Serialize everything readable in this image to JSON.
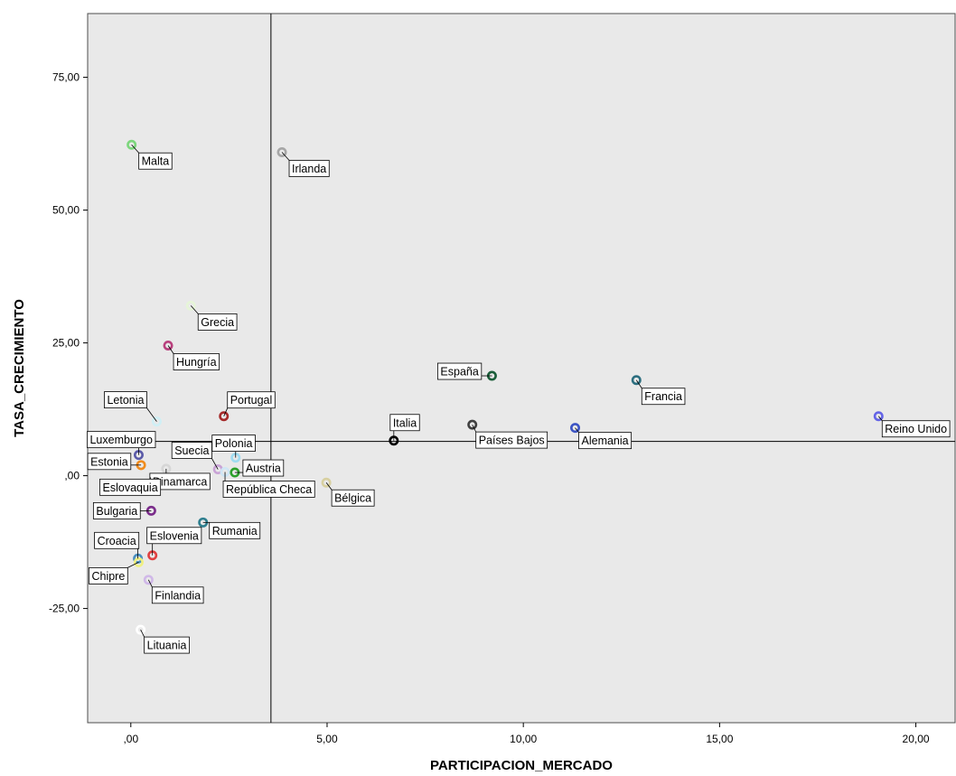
{
  "chart_data": {
    "type": "scatter",
    "title": "",
    "xlabel": "PARTICIPACION_MERCADO",
    "ylabel": "TASA_CRECIMIENTO",
    "xlim": [
      -1.1,
      21.0
    ],
    "ylim": [
      -46.5,
      87.0
    ],
    "x_ticks": [
      0,
      5,
      10,
      15,
      20
    ],
    "x_tick_labels": [
      ",00",
      "5,00",
      "10,00",
      "15,00",
      "20,00"
    ],
    "y_ticks": [
      -25,
      0,
      25,
      50,
      75
    ],
    "y_tick_labels": [
      "-25,00",
      ",00",
      "25,00",
      "50,00",
      "75,00"
    ],
    "reference_lines": {
      "x": 3.57,
      "y": 6.45
    },
    "grid": false,
    "legend": "none",
    "points": [
      {
        "label": "Malta",
        "x": 0.02,
        "y": 62.3,
        "color": "#7cd67c"
      },
      {
        "label": "Irlanda",
        "x": 3.85,
        "y": 60.9,
        "color": "#a6a6a6"
      },
      {
        "label": "Grecia",
        "x": 1.53,
        "y": 32.0,
        "color": "#e6f5d8"
      },
      {
        "label": "Hungría",
        "x": 0.95,
        "y": 24.5,
        "color": "#b8407d"
      },
      {
        "label": "España",
        "x": 9.2,
        "y": 18.8,
        "color": "#1b5e3a"
      },
      {
        "label": "Francia",
        "x": 12.88,
        "y": 18.0,
        "color": "#2c6e7f"
      },
      {
        "label": "Reino Unido",
        "x": 19.05,
        "y": 11.2,
        "color": "#6464e6"
      },
      {
        "label": "Portugal",
        "x": 2.37,
        "y": 11.2,
        "color": "#a52a2a"
      },
      {
        "label": "Letonia",
        "x": 0.66,
        "y": 10.2,
        "color": "#cfeff5"
      },
      {
        "label": "Países Bajos",
        "x": 8.7,
        "y": 9.6,
        "color": "#404040"
      },
      {
        "label": "Alemania",
        "x": 11.32,
        "y": 9.0,
        "color": "#3c54c4"
      },
      {
        "label": "Italia",
        "x": 6.7,
        "y": 6.6,
        "color": "#000000"
      },
      {
        "label": "Luxemburgo",
        "x": 0.2,
        "y": 3.9,
        "color": "#5a5aa8"
      },
      {
        "label": "Polonia",
        "x": 2.67,
        "y": 3.4,
        "color": "#9fdcf0"
      },
      {
        "label": "Estonia",
        "x": 0.26,
        "y": 2.0,
        "color": "#f08c1e"
      },
      {
        "label": "Suecia",
        "x": 2.22,
        "y": 1.2,
        "color": "#c9a3d6"
      },
      {
        "label": "Dinamarca",
        "x": 0.9,
        "y": 1.3,
        "color": "#d6d6d6"
      },
      {
        "label": "República Checa",
        "x": 2.4,
        "y": 0.7,
        "color": "#cfe6f5"
      },
      {
        "label": "Austria",
        "x": 2.65,
        "y": 0.6,
        "color": "#2ca02c"
      },
      {
        "label": "Eslovaquia",
        "x": 0.5,
        "y": -0.3,
        "color": "#e6e6e6"
      },
      {
        "label": "Bélgica",
        "x": 4.98,
        "y": -1.3,
        "color": "#d8d0a0"
      },
      {
        "label": "Bulgaria",
        "x": 0.52,
        "y": -6.6,
        "color": "#7b2d8b"
      },
      {
        "label": "Rumania",
        "x": 1.84,
        "y": -8.8,
        "color": "#2f7f8f"
      },
      {
        "label": "Eslovenia",
        "x": 0.55,
        "y": -15.0,
        "color": "#e04040"
      },
      {
        "label": "Croacia",
        "x": 0.18,
        "y": -15.6,
        "color": "#4a8fc0"
      },
      {
        "label": "Chipre",
        "x": 0.2,
        "y": -16.3,
        "color": "#f0f080"
      },
      {
        "label": "Finlandia",
        "x": 0.45,
        "y": -19.6,
        "color": "#d0b8e8"
      },
      {
        "label": "Lituania",
        "x": 0.25,
        "y": -29.0,
        "color": "#ffffff"
      }
    ]
  }
}
